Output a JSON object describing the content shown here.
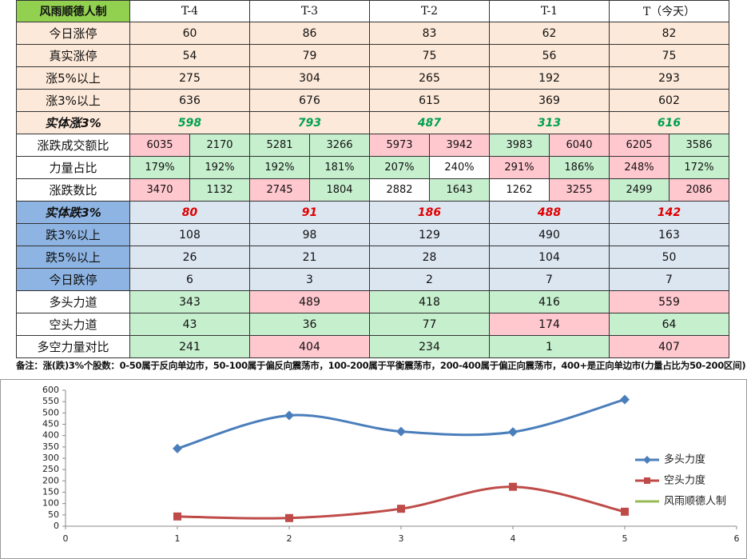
{
  "table": {
    "header": [
      "风雨顺德人制",
      "T-4",
      "T-3",
      "T-2",
      "T-1",
      "T（今天）"
    ],
    "rows": [
      [
        "今日涨停",
        60,
        86,
        83,
        62,
        82
      ],
      [
        "真实涨停",
        54,
        79,
        75,
        56,
        75
      ],
      [
        "涨5%以上",
        275,
        304,
        265,
        192,
        293
      ],
      [
        "涨3%以上",
        636,
        676,
        615,
        369,
        602
      ],
      [
        "实体涨3%",
        598,
        793,
        487,
        313,
        616
      ],
      [
        "涨跌成交额比",
        6035,
        2170,
        5281,
        3266,
        5973,
        3942,
        3983,
        6040,
        6205,
        3586
      ],
      [
        "力量占比",
        "179%",
        "192%",
        "192%",
        "181%",
        "207%",
        "240%",
        "291%",
        "186%",
        "248%",
        "172%"
      ],
      [
        "涨跌数比",
        3470,
        1132,
        2745,
        1804,
        2882,
        1643,
        1262,
        3255,
        2499,
        2086
      ],
      [
        "实体跌3%",
        80,
        91,
        186,
        488,
        142
      ],
      [
        "跌3%以上",
        108,
        98,
        129,
        490,
        163
      ],
      [
        "跌5%以上",
        26,
        21,
        28,
        104,
        50
      ],
      [
        "今日跌停",
        6,
        3,
        2,
        7,
        7
      ],
      [
        "多头力道",
        343,
        489,
        418,
        416,
        559
      ],
      [
        "空头力道",
        43,
        36,
        77,
        174,
        64
      ],
      [
        "多空力量对比",
        241,
        404,
        234,
        1,
        407
      ]
    ]
  },
  "note": "备注：涨(跌)3%个股数：0-50属于反向单边市，50-100属于偏反向震荡市，100-200属于平衡震荡市，200-400属于偏正向震荡市，400+是正向单边市(力量占比为50-200区间)",
  "chart_data": {
    "type": "line",
    "x": [
      1,
      2,
      3,
      4,
      5
    ],
    "series": [
      {
        "name": "多头力度",
        "color": "#4a7ebb",
        "values": [
          343,
          489,
          418,
          416,
          559
        ]
      },
      {
        "name": "空头力度",
        "color": "#be4b48",
        "values": [
          43,
          36,
          77,
          174,
          64
        ]
      },
      {
        "name": "风雨顺德人制",
        "color": "#98b954"
      }
    ],
    "xlim": [
      0,
      6
    ],
    "xticks": [
      0,
      1,
      2,
      3,
      4,
      5,
      6
    ],
    "ylim": [
      0,
      600
    ],
    "yticks": [
      0,
      50,
      100,
      150,
      200,
      250,
      300,
      350,
      400,
      450,
      500,
      550,
      600
    ],
    "legend": "right"
  }
}
